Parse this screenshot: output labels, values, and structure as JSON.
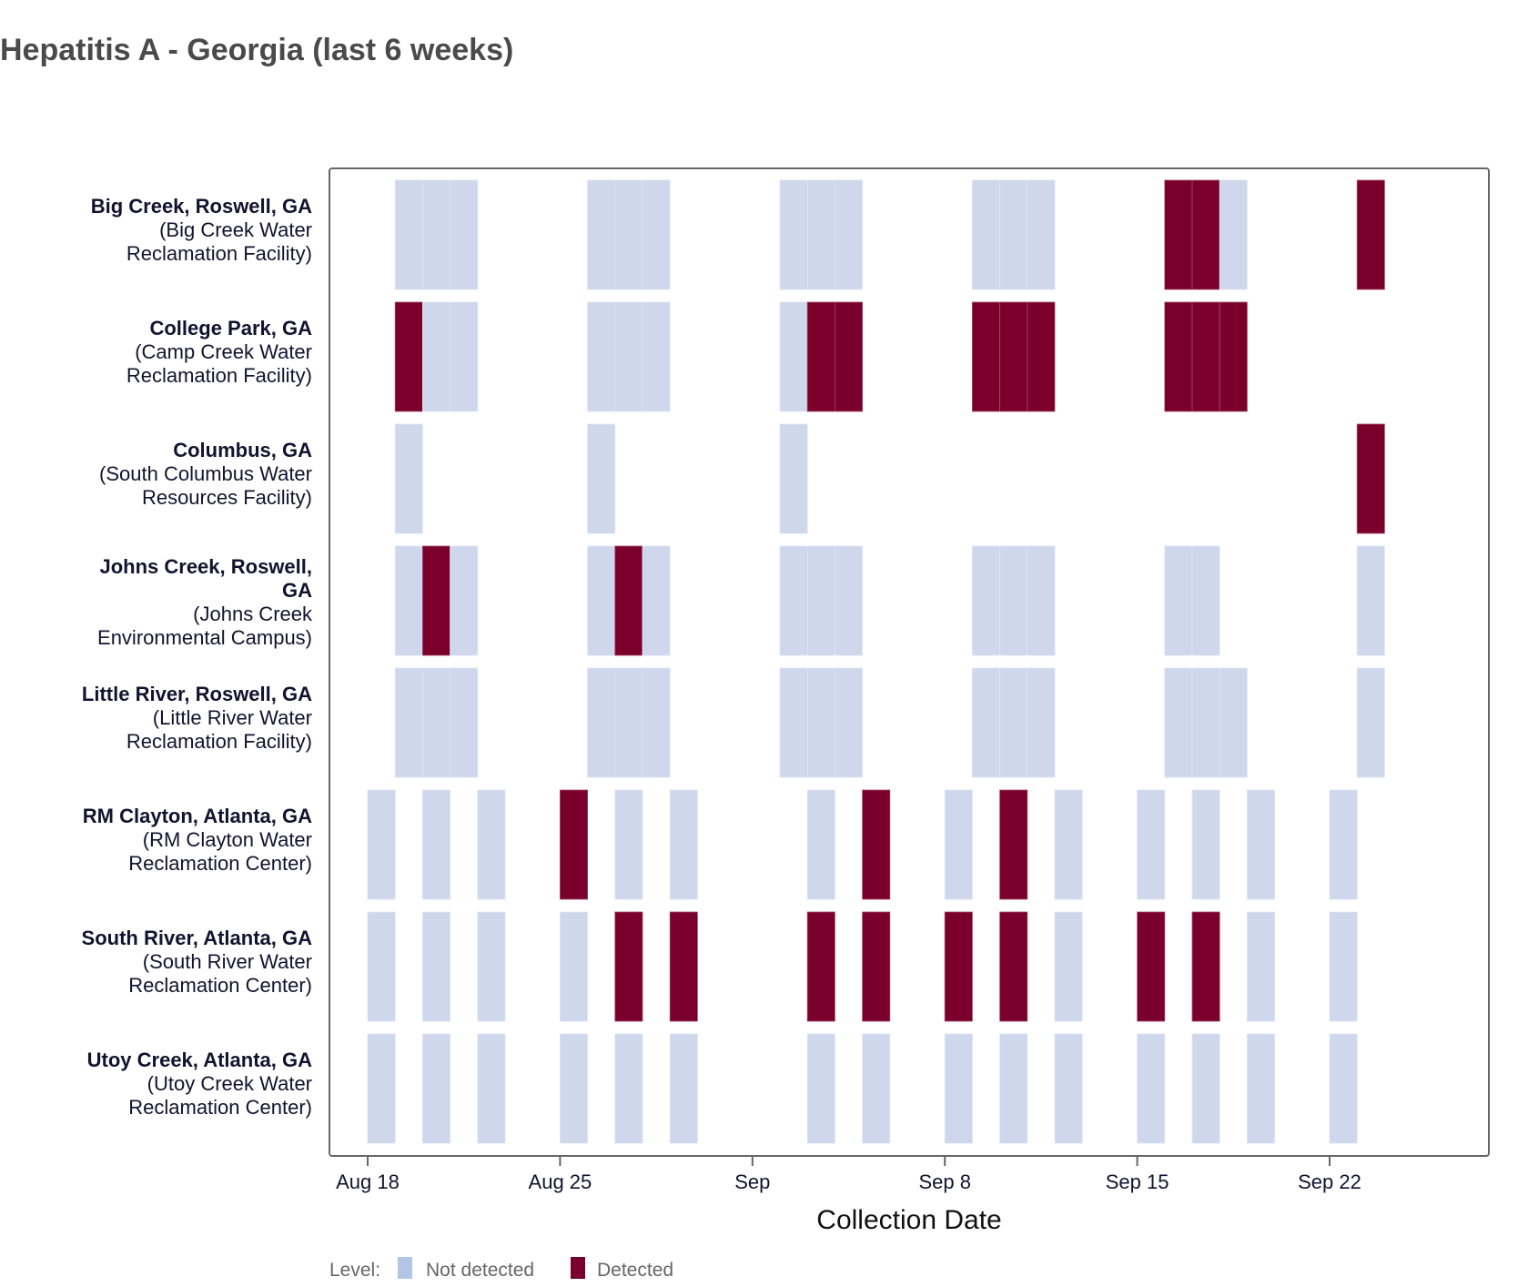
{
  "title": "Hepatitis A - Georgia (last 6 weeks)",
  "colors": {
    "not_detected": "#ced7ec",
    "detected": "#7a002b",
    "legend_not_detected": "#b4c4e4"
  },
  "chart_data": {
    "type": "heatmap",
    "title": "Hepatitis A - Georgia (last 6 weeks)",
    "xlabel": "Collection Date",
    "ylabel": "",
    "x_domain": [
      "Aug 16",
      "Sep 28"
    ],
    "x_ticks": [
      {
        "label": "Aug 18",
        "day": 0
      },
      {
        "label": "Aug 25",
        "day": 7
      },
      {
        "label": "Sep",
        "day": 14
      },
      {
        "label": "Sep 8",
        "day": 21
      },
      {
        "label": "Sep 15",
        "day": 28
      },
      {
        "label": "Sep 22",
        "day": 35
      }
    ],
    "legend": {
      "title": "Level:",
      "placement": "bottom-left",
      "items": [
        {
          "key": "N",
          "label": "Not detected"
        },
        {
          "key": "D",
          "label": "Detected"
        }
      ]
    },
    "rows": [
      {
        "name": "Big Creek, Roswell, GA",
        "name_lines": [
          "Big Creek, Roswell, GA"
        ],
        "facility_lines": [
          "(Big Creek Water",
          "Reclamation Facility)"
        ],
        "bar_width_days": 1,
        "samples": [
          {
            "date": "Aug 19",
            "day": 1,
            "level": "N"
          },
          {
            "date": "Aug 20",
            "day": 2,
            "level": "N"
          },
          {
            "date": "Aug 21",
            "day": 3,
            "level": "N"
          },
          {
            "date": "Aug 26",
            "day": 8,
            "level": "N"
          },
          {
            "date": "Aug 27",
            "day": 9,
            "level": "N"
          },
          {
            "date": "Aug 28",
            "day": 10,
            "level": "N"
          },
          {
            "date": "Sep 2",
            "day": 15,
            "level": "N"
          },
          {
            "date": "Sep 3",
            "day": 16,
            "level": "N"
          },
          {
            "date": "Sep 4",
            "day": 17,
            "level": "N"
          },
          {
            "date": "Sep 9",
            "day": 22,
            "level": "N"
          },
          {
            "date": "Sep 10",
            "day": 23,
            "level": "N"
          },
          {
            "date": "Sep 11",
            "day": 24,
            "level": "N"
          },
          {
            "date": "Sep 16",
            "day": 29,
            "level": "D"
          },
          {
            "date": "Sep 17",
            "day": 30,
            "level": "D"
          },
          {
            "date": "Sep 18",
            "day": 31,
            "level": "N"
          },
          {
            "date": "Sep 23",
            "day": 36,
            "level": "D"
          }
        ]
      },
      {
        "name": "College Park, GA",
        "name_lines": [
          "College Park, GA"
        ],
        "facility_lines": [
          "(Camp Creek Water",
          "Reclamation Facility)"
        ],
        "bar_width_days": 1,
        "samples": [
          {
            "date": "Aug 19",
            "day": 1,
            "level": "D"
          },
          {
            "date": "Aug 20",
            "day": 2,
            "level": "N"
          },
          {
            "date": "Aug 21",
            "day": 3,
            "level": "N"
          },
          {
            "date": "Aug 26",
            "day": 8,
            "level": "N"
          },
          {
            "date": "Aug 27",
            "day": 9,
            "level": "N"
          },
          {
            "date": "Aug 28",
            "day": 10,
            "level": "N"
          },
          {
            "date": "Sep 2",
            "day": 15,
            "level": "N"
          },
          {
            "date": "Sep 3",
            "day": 16,
            "level": "D"
          },
          {
            "date": "Sep 4",
            "day": 17,
            "level": "D"
          },
          {
            "date": "Sep 9",
            "day": 22,
            "level": "D"
          },
          {
            "date": "Sep 10",
            "day": 23,
            "level": "D"
          },
          {
            "date": "Sep 11",
            "day": 24,
            "level": "D"
          },
          {
            "date": "Sep 16",
            "day": 29,
            "level": "D"
          },
          {
            "date": "Sep 17",
            "day": 30,
            "level": "D"
          },
          {
            "date": "Sep 18",
            "day": 31,
            "level": "D"
          }
        ]
      },
      {
        "name": "Columbus, GA",
        "name_lines": [
          "Columbus, GA"
        ],
        "facility_lines": [
          "(South Columbus Water",
          "Resources Facility)"
        ],
        "bar_width_days": 1,
        "samples": [
          {
            "date": "Aug 19",
            "day": 1,
            "level": "N"
          },
          {
            "date": "Aug 26",
            "day": 8,
            "level": "N"
          },
          {
            "date": "Sep 2",
            "day": 15,
            "level": "N"
          },
          {
            "date": "Sep 23",
            "day": 36,
            "level": "D"
          }
        ]
      },
      {
        "name": "Johns Creek, Roswell, GA",
        "name_lines": [
          "Johns Creek, Roswell,",
          "GA"
        ],
        "facility_lines": [
          "(Johns Creek",
          "Environmental Campus)"
        ],
        "bar_width_days": 1,
        "samples": [
          {
            "date": "Aug 19",
            "day": 1,
            "level": "N"
          },
          {
            "date": "Aug 20",
            "day": 2,
            "level": "D"
          },
          {
            "date": "Aug 21",
            "day": 3,
            "level": "N"
          },
          {
            "date": "Aug 26",
            "day": 8,
            "level": "N"
          },
          {
            "date": "Aug 27",
            "day": 9,
            "level": "D"
          },
          {
            "date": "Aug 28",
            "day": 10,
            "level": "N"
          },
          {
            "date": "Sep 2",
            "day": 15,
            "level": "N"
          },
          {
            "date": "Sep 3",
            "day": 16,
            "level": "N"
          },
          {
            "date": "Sep 4",
            "day": 17,
            "level": "N"
          },
          {
            "date": "Sep 9",
            "day": 22,
            "level": "N"
          },
          {
            "date": "Sep 10",
            "day": 23,
            "level": "N"
          },
          {
            "date": "Sep 11",
            "day": 24,
            "level": "N"
          },
          {
            "date": "Sep 16",
            "day": 29,
            "level": "N"
          },
          {
            "date": "Sep 17",
            "day": 30,
            "level": "N"
          },
          {
            "date": "Sep 23",
            "day": 36,
            "level": "N"
          }
        ]
      },
      {
        "name": "Little River, Roswell, GA",
        "name_lines": [
          "Little River, Roswell, GA"
        ],
        "facility_lines": [
          "(Little River Water",
          "Reclamation Facility)"
        ],
        "bar_width_days": 1,
        "samples": [
          {
            "date": "Aug 19",
            "day": 1,
            "level": "N"
          },
          {
            "date": "Aug 20",
            "day": 2,
            "level": "N"
          },
          {
            "date": "Aug 21",
            "day": 3,
            "level": "N"
          },
          {
            "date": "Aug 26",
            "day": 8,
            "level": "N"
          },
          {
            "date": "Aug 27",
            "day": 9,
            "level": "N"
          },
          {
            "date": "Aug 28",
            "day": 10,
            "level": "N"
          },
          {
            "date": "Sep 2",
            "day": 15,
            "level": "N"
          },
          {
            "date": "Sep 3",
            "day": 16,
            "level": "N"
          },
          {
            "date": "Sep 4",
            "day": 17,
            "level": "N"
          },
          {
            "date": "Sep 9",
            "day": 22,
            "level": "N"
          },
          {
            "date": "Sep 10",
            "day": 23,
            "level": "N"
          },
          {
            "date": "Sep 11",
            "day": 24,
            "level": "N"
          },
          {
            "date": "Sep 16",
            "day": 29,
            "level": "N"
          },
          {
            "date": "Sep 17",
            "day": 30,
            "level": "N"
          },
          {
            "date": "Sep 18",
            "day": 31,
            "level": "N"
          },
          {
            "date": "Sep 23",
            "day": 36,
            "level": "N"
          }
        ]
      },
      {
        "name": "RM Clayton, Atlanta, GA",
        "name_lines": [
          "RM Clayton, Atlanta, GA"
        ],
        "facility_lines": [
          "(RM Clayton Water",
          "Reclamation Center)"
        ],
        "bar_width_days": 1,
        "samples": [
          {
            "date": "Aug 18",
            "day": 0,
            "level": "N"
          },
          {
            "date": "Aug 20",
            "day": 2,
            "level": "N"
          },
          {
            "date": "Aug 22",
            "day": 4,
            "level": "N"
          },
          {
            "date": "Aug 25",
            "day": 7,
            "level": "D"
          },
          {
            "date": "Aug 27",
            "day": 9,
            "level": "N"
          },
          {
            "date": "Aug 29",
            "day": 11,
            "level": "N"
          },
          {
            "date": "Sep 3",
            "day": 16,
            "level": "N"
          },
          {
            "date": "Sep 5",
            "day": 18,
            "level": "D"
          },
          {
            "date": "Sep 8",
            "day": 21,
            "level": "N"
          },
          {
            "date": "Sep 10",
            "day": 23,
            "level": "D"
          },
          {
            "date": "Sep 12",
            "day": 25,
            "level": "N"
          },
          {
            "date": "Sep 15",
            "day": 28,
            "level": "N"
          },
          {
            "date": "Sep 17",
            "day": 30,
            "level": "N"
          },
          {
            "date": "Sep 19",
            "day": 32,
            "level": "N"
          },
          {
            "date": "Sep 22",
            "day": 35,
            "level": "N"
          }
        ]
      },
      {
        "name": "South River, Atlanta, GA",
        "name_lines": [
          "South River, Atlanta, GA"
        ],
        "facility_lines": [
          "(South River Water",
          "Reclamation Center)"
        ],
        "bar_width_days": 1,
        "samples": [
          {
            "date": "Aug 18",
            "day": 0,
            "level": "N"
          },
          {
            "date": "Aug 20",
            "day": 2,
            "level": "N"
          },
          {
            "date": "Aug 22",
            "day": 4,
            "level": "N"
          },
          {
            "date": "Aug 25",
            "day": 7,
            "level": "N"
          },
          {
            "date": "Aug 27",
            "day": 9,
            "level": "D"
          },
          {
            "date": "Aug 29",
            "day": 11,
            "level": "D"
          },
          {
            "date": "Sep 3",
            "day": 16,
            "level": "D"
          },
          {
            "date": "Sep 5",
            "day": 18,
            "level": "D"
          },
          {
            "date": "Sep 8",
            "day": 21,
            "level": "D"
          },
          {
            "date": "Sep 10",
            "day": 23,
            "level": "D"
          },
          {
            "date": "Sep 12",
            "day": 25,
            "level": "N"
          },
          {
            "date": "Sep 15",
            "day": 28,
            "level": "D"
          },
          {
            "date": "Sep 17",
            "day": 30,
            "level": "D"
          },
          {
            "date": "Sep 19",
            "day": 32,
            "level": "N"
          },
          {
            "date": "Sep 22",
            "day": 35,
            "level": "N"
          }
        ]
      },
      {
        "name": "Utoy Creek, Atlanta, GA",
        "name_lines": [
          "Utoy Creek, Atlanta, GA"
        ],
        "facility_lines": [
          "(Utoy Creek Water",
          "Reclamation Center)"
        ],
        "bar_width_days": 1,
        "samples": [
          {
            "date": "Aug 18",
            "day": 0,
            "level": "N"
          },
          {
            "date": "Aug 20",
            "day": 2,
            "level": "N"
          },
          {
            "date": "Aug 22",
            "day": 4,
            "level": "N"
          },
          {
            "date": "Aug 25",
            "day": 7,
            "level": "N"
          },
          {
            "date": "Aug 27",
            "day": 9,
            "level": "N"
          },
          {
            "date": "Aug 29",
            "day": 11,
            "level": "N"
          },
          {
            "date": "Sep 3",
            "day": 16,
            "level": "N"
          },
          {
            "date": "Sep 5",
            "day": 18,
            "level": "N"
          },
          {
            "date": "Sep 8",
            "day": 21,
            "level": "N"
          },
          {
            "date": "Sep 10",
            "day": 23,
            "level": "N"
          },
          {
            "date": "Sep 12",
            "day": 25,
            "level": "N"
          },
          {
            "date": "Sep 15",
            "day": 28,
            "level": "N"
          },
          {
            "date": "Sep 17",
            "day": 30,
            "level": "N"
          },
          {
            "date": "Sep 19",
            "day": 32,
            "level": "N"
          },
          {
            "date": "Sep 22",
            "day": 35,
            "level": "N"
          }
        ]
      }
    ]
  }
}
